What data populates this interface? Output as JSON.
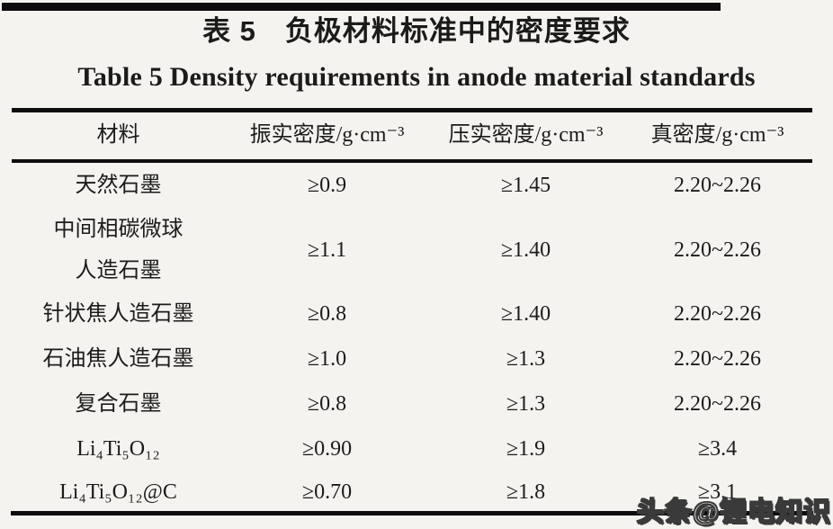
{
  "page": {
    "title_cn": "表 5　负极材料标准中的密度要求",
    "title_en": "Table 5   Density requirements in anode material standards"
  },
  "table": {
    "headers": [
      "材料",
      "振实密度/g·cm⁻³",
      "压实密度/g·cm⁻³",
      "真密度/g·cm⁻³"
    ],
    "rows": [
      {
        "material": "天然石墨",
        "tap": "≥0.9",
        "compaction": "≥1.45",
        "true_density": "2.20~2.26"
      },
      {
        "material": "中间相碳微球\n人造石墨",
        "tap": "≥1.1",
        "compaction": "≥1.40",
        "true_density": "2.20~2.26"
      },
      {
        "material": "针状焦人造石墨",
        "tap": "≥0.8",
        "compaction": "≥1.40",
        "true_density": "2.20~2.26"
      },
      {
        "material": "石油焦人造石墨",
        "tap": "≥1.0",
        "compaction": "≥1.3",
        "true_density": "2.20~2.26"
      },
      {
        "material": "复合石墨",
        "tap": "≥0.8",
        "compaction": "≥1.3",
        "true_density": "2.20~2.26"
      },
      {
        "material": "Li₄Ti₅O₁₂",
        "tap": "≥0.90",
        "compaction": "≥1.9",
        "true_density": "≥3.4"
      },
      {
        "material": "Li₄Ti₅O₁₂@C",
        "tap": "≥0.70",
        "compaction": "≥1.8",
        "true_density": "≥3.1"
      }
    ]
  },
  "watermark": {
    "text": "头条@锂电知识"
  },
  "colors": {
    "background": "#f5f3ef",
    "ink": "#1b1b1b",
    "rule": "#0d0d0d",
    "watermark_fill": "#ffffff",
    "watermark_outline": "#3a3a3a"
  }
}
